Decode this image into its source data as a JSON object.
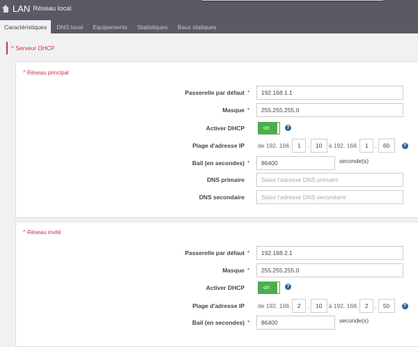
{
  "header": {
    "title": "LAN",
    "subtitle": "Réseau local",
    "icon": "home-icon"
  },
  "tabs": [
    {
      "label": "Caractéristiques",
      "active": true
    },
    {
      "label": "DNS local"
    },
    {
      "label": "Equipements"
    },
    {
      "label": "Statistiques"
    },
    {
      "label": "Baux statiques"
    }
  ],
  "section": {
    "title": "^ Serveur DHCP"
  },
  "labels": {
    "gateway": "Passerelle par défaut",
    "mask": "Masque",
    "dhcp": "Activer DHCP",
    "range": "Plage d'adresse IP",
    "lease": "Bail (en secondes)",
    "dns1": "DNS primaire",
    "dns2": "DNS secondaire",
    "required": "*",
    "from": "de 192. 168.",
    "to": "à 192. 168.",
    "dot": ".",
    "unit": "seconde(s)",
    "help": "?"
  },
  "main": {
    "title": "^ Réseau principal",
    "gateway": "192.168.1.1",
    "mask": "255.255.255.0",
    "dhcp": "on",
    "range": {
      "from3": "1",
      "from4": "10",
      "to3": "1",
      "to4": "60"
    },
    "lease": "86400",
    "dns1_placeholder": "Saisir l'adresse DNS primaire",
    "dns2_placeholder": "Saisir l'adresse DNS secondaire"
  },
  "guest": {
    "title": "^ Réseau invité",
    "gateway": "192.168.2.1",
    "mask": "255.255.255.0",
    "dhcp": "on",
    "range": {
      "from3": "2",
      "from4": "10",
      "to3": "2",
      "to4": "50"
    },
    "lease": "86400"
  },
  "colors": {
    "accent": "#c8313e",
    "header": "#5a5a64",
    "toggle_on": "#4cae4c"
  }
}
